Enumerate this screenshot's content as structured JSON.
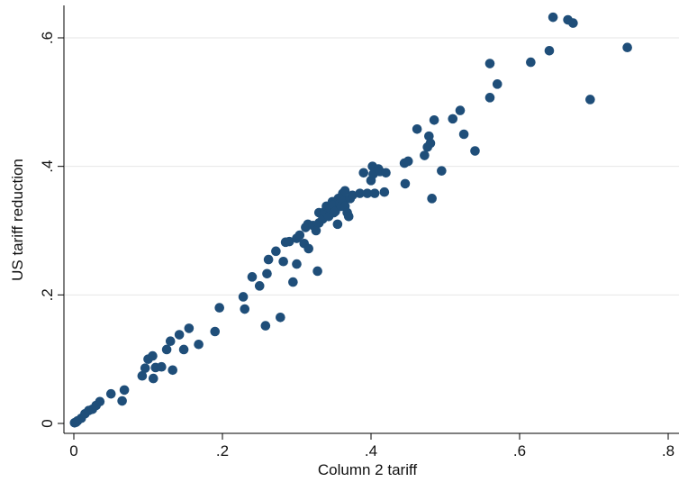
{
  "chart_data": {
    "type": "scatter",
    "xlabel": "Column 2 tariff",
    "ylabel": "US tariff reduction",
    "xlim": [
      0,
      0.8
    ],
    "ylim": [
      0,
      0.65
    ],
    "x_ticks": [
      0,
      0.2,
      0.4,
      0.6,
      0.8
    ],
    "x_tick_labels": [
      "0",
      ".2",
      ".4",
      ".6",
      ".8"
    ],
    "y_ticks": [
      0,
      0.2,
      0.4,
      0.6
    ],
    "y_tick_labels": [
      "0",
      ".2",
      ".4",
      ".6"
    ],
    "grid": "horizontal",
    "marker_color": "#1f4e79",
    "points": [
      [
        0.001,
        0.001
      ],
      [
        0.003,
        0.002
      ],
      [
        0.005,
        0.004
      ],
      [
        0.01,
        0.008
      ],
      [
        0.015,
        0.015
      ],
      [
        0.02,
        0.02
      ],
      [
        0.025,
        0.022
      ],
      [
        0.03,
        0.028
      ],
      [
        0.035,
        0.034
      ],
      [
        0.05,
        0.046
      ],
      [
        0.065,
        0.035
      ],
      [
        0.068,
        0.052
      ],
      [
        0.092,
        0.074
      ],
      [
        0.096,
        0.086
      ],
      [
        0.1,
        0.1
      ],
      [
        0.106,
        0.105
      ],
      [
        0.107,
        0.07
      ],
      [
        0.11,
        0.087
      ],
      [
        0.118,
        0.088
      ],
      [
        0.125,
        0.115
      ],
      [
        0.13,
        0.128
      ],
      [
        0.133,
        0.083
      ],
      [
        0.142,
        0.138
      ],
      [
        0.148,
        0.115
      ],
      [
        0.155,
        0.148
      ],
      [
        0.168,
        0.123
      ],
      [
        0.19,
        0.143
      ],
      [
        0.196,
        0.18
      ],
      [
        0.228,
        0.197
      ],
      [
        0.23,
        0.178
      ],
      [
        0.24,
        0.228
      ],
      [
        0.25,
        0.214
      ],
      [
        0.258,
        0.152
      ],
      [
        0.26,
        0.233
      ],
      [
        0.262,
        0.255
      ],
      [
        0.272,
        0.268
      ],
      [
        0.278,
        0.165
      ],
      [
        0.282,
        0.252
      ],
      [
        0.285,
        0.282
      ],
      [
        0.29,
        0.283
      ],
      [
        0.295,
        0.22
      ],
      [
        0.3,
        0.248
      ],
      [
        0.3,
        0.288
      ],
      [
        0.304,
        0.293
      ],
      [
        0.31,
        0.28
      ],
      [
        0.312,
        0.305
      ],
      [
        0.315,
        0.31
      ],
      [
        0.316,
        0.272
      ],
      [
        0.322,
        0.308
      ],
      [
        0.326,
        0.3
      ],
      [
        0.328,
        0.237
      ],
      [
        0.33,
        0.312
      ],
      [
        0.33,
        0.328
      ],
      [
        0.335,
        0.318
      ],
      [
        0.338,
        0.33
      ],
      [
        0.34,
        0.338
      ],
      [
        0.343,
        0.322
      ],
      [
        0.345,
        0.335
      ],
      [
        0.348,
        0.345
      ],
      [
        0.35,
        0.34
      ],
      [
        0.35,
        0.328
      ],
      [
        0.352,
        0.33
      ],
      [
        0.355,
        0.31
      ],
      [
        0.356,
        0.35
      ],
      [
        0.358,
        0.342
      ],
      [
        0.36,
        0.338
      ],
      [
        0.36,
        0.352
      ],
      [
        0.362,
        0.358
      ],
      [
        0.363,
        0.345
      ],
      [
        0.365,
        0.338
      ],
      [
        0.365,
        0.362
      ],
      [
        0.368,
        0.328
      ],
      [
        0.37,
        0.322
      ],
      [
        0.372,
        0.35
      ],
      [
        0.375,
        0.355
      ],
      [
        0.385,
        0.358
      ],
      [
        0.39,
        0.39
      ],
      [
        0.395,
        0.358
      ],
      [
        0.4,
        0.378
      ],
      [
        0.402,
        0.4
      ],
      [
        0.403,
        0.388
      ],
      [
        0.405,
        0.358
      ],
      [
        0.41,
        0.396
      ],
      [
        0.412,
        0.392
      ],
      [
        0.418,
        0.36
      ],
      [
        0.42,
        0.39
      ],
      [
        0.445,
        0.405
      ],
      [
        0.446,
        0.373
      ],
      [
        0.45,
        0.408
      ],
      [
        0.462,
        0.458
      ],
      [
        0.472,
        0.417
      ],
      [
        0.476,
        0.43
      ],
      [
        0.478,
        0.447
      ],
      [
        0.48,
        0.436
      ],
      [
        0.482,
        0.35
      ],
      [
        0.485,
        0.472
      ],
      [
        0.495,
        0.393
      ],
      [
        0.51,
        0.474
      ],
      [
        0.52,
        0.487
      ],
      [
        0.525,
        0.45
      ],
      [
        0.54,
        0.424
      ],
      [
        0.56,
        0.56
      ],
      [
        0.56,
        0.507
      ],
      [
        0.57,
        0.528
      ],
      [
        0.615,
        0.562
      ],
      [
        0.64,
        0.58
      ],
      [
        0.645,
        0.632
      ],
      [
        0.665,
        0.628
      ],
      [
        0.672,
        0.623
      ],
      [
        0.695,
        0.504
      ],
      [
        0.745,
        0.585
      ]
    ]
  }
}
